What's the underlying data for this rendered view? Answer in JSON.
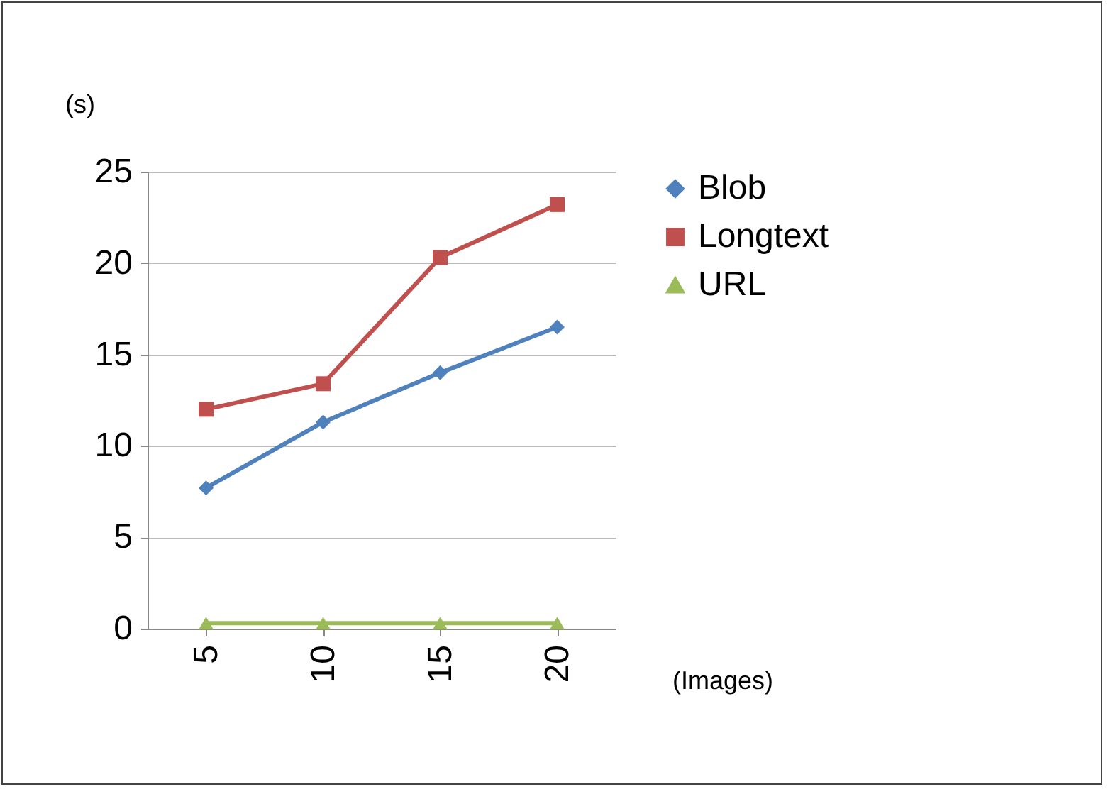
{
  "chart_data": {
    "type": "line",
    "xlabel": "(Images)",
    "ylabel": "(s)",
    "categories": [
      "5",
      "10",
      "15",
      "20"
    ],
    "series": [
      {
        "name": "Blob",
        "color": "#4f81bd",
        "marker": "diamond",
        "values": [
          7.7,
          11.3,
          14.0,
          16.5
        ]
      },
      {
        "name": "Longtext",
        "color": "#c0504d",
        "marker": "square",
        "values": [
          12.0,
          13.4,
          20.3,
          23.2
        ]
      },
      {
        "name": "URL",
        "color": "#9bbb59",
        "marker": "triangle",
        "values": [
          0.3,
          0.3,
          0.3,
          0.3
        ]
      }
    ],
    "ylim": [
      0,
      25
    ],
    "yticks": [
      0,
      5,
      10,
      15,
      20,
      25
    ],
    "grid": "y",
    "legend": "right",
    "line_style": "solid"
  }
}
